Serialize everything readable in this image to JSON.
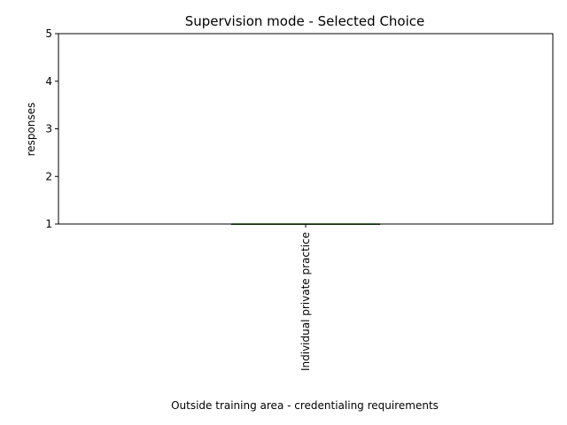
{
  "chart_data": {
    "type": "box",
    "title": "Supervision mode - Selected Choice",
    "xlabel": "Outside training area - credentialing requirements",
    "ylabel": "responses",
    "categories": [
      "Individual private practice"
    ],
    "values": [
      1
    ],
    "box": [
      {
        "min": 1,
        "q1": 1,
        "median": 1,
        "q3": 1,
        "max": 1
      }
    ],
    "ylim": [
      1,
      5
    ],
    "yticks": [
      1,
      2,
      3,
      4,
      5
    ],
    "median_color": "#2ca02c",
    "grid": false,
    "legend": "none"
  }
}
